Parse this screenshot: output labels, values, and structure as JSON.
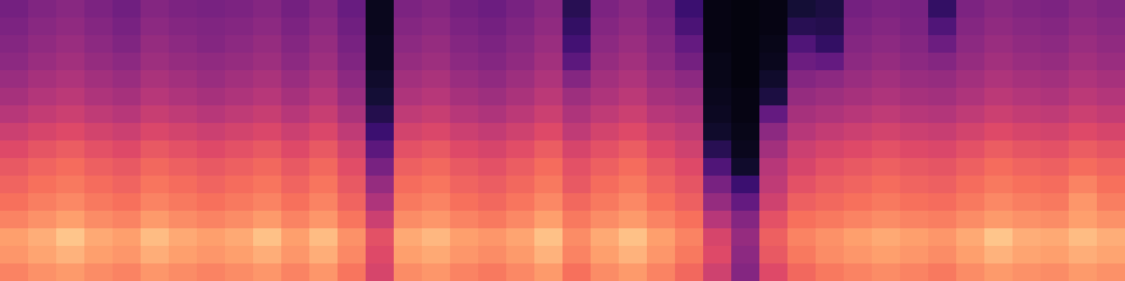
{
  "chart_data": {
    "type": "heatmap",
    "tick_labels": false,
    "grid": false,
    "zlim": [
      0,
      100
    ],
    "cells": [
      [
        34,
        37,
        39,
        36,
        33,
        38,
        36,
        35,
        36,
        38,
        34,
        38,
        31,
        5,
        36,
        38,
        34,
        32,
        35,
        39,
        15,
        36,
        39,
        34,
        20,
        3,
        2,
        3,
        10,
        12,
        34,
        36,
        35,
        18,
        36,
        39,
        37,
        36,
        39,
        37
      ],
      [
        36,
        39,
        41,
        38,
        35,
        40,
        38,
        37,
        38,
        40,
        36,
        40,
        33,
        5,
        38,
        40,
        36,
        34,
        37,
        41,
        18,
        38,
        41,
        36,
        24,
        3,
        2,
        3,
        15,
        14,
        36,
        38,
        36,
        25,
        38,
        41,
        39,
        38,
        41,
        39
      ],
      [
        38,
        41,
        43,
        40,
        37,
        42,
        40,
        38,
        40,
        42,
        38,
        42,
        35,
        6,
        40,
        42,
        38,
        36,
        39,
        43,
        22,
        40,
        43,
        38,
        30,
        3,
        2,
        4,
        25,
        18,
        38,
        40,
        38,
        32,
        40,
        43,
        41,
        40,
        43,
        41
      ],
      [
        40,
        43,
        45,
        42,
        40,
        44,
        42,
        41,
        42,
        44,
        40,
        44,
        37,
        6,
        42,
        44,
        40,
        38,
        41,
        45,
        28,
        42,
        45,
        40,
        34,
        4,
        2,
        5,
        32,
        30,
        40,
        42,
        40,
        38,
        42,
        45,
        43,
        42,
        45,
        43
      ],
      [
        43,
        46,
        48,
        45,
        43,
        47,
        45,
        43,
        45,
        47,
        43,
        47,
        40,
        8,
        45,
        47,
        43,
        41,
        44,
        48,
        38,
        45,
        48,
        43,
        40,
        4,
        2,
        8,
        38,
        40,
        43,
        45,
        43,
        42,
        45,
        48,
        46,
        45,
        48,
        46
      ],
      [
        46,
        49,
        51,
        48,
        46,
        50,
        48,
        46,
        48,
        50,
        46,
        50,
        43,
        10,
        48,
        50,
        46,
        44,
        47,
        51,
        44,
        48,
        51,
        46,
        44,
        5,
        3,
        12,
        42,
        44,
        46,
        48,
        46,
        45,
        48,
        51,
        49,
        48,
        51,
        49
      ],
      [
        50,
        53,
        55,
        52,
        50,
        54,
        52,
        50,
        52,
        54,
        50,
        54,
        47,
        14,
        52,
        54,
        50,
        48,
        51,
        55,
        48,
        52,
        55,
        50,
        48,
        6,
        3,
        30,
        46,
        48,
        50,
        52,
        50,
        49,
        52,
        55,
        53,
        52,
        55,
        53
      ],
      [
        55,
        58,
        60,
        57,
        55,
        59,
        57,
        55,
        57,
        59,
        55,
        59,
        52,
        20,
        57,
        59,
        55,
        53,
        56,
        60,
        52,
        57,
        60,
        55,
        52,
        8,
        4,
        40,
        50,
        53,
        55,
        57,
        55,
        54,
        57,
        60,
        58,
        57,
        60,
        58
      ],
      [
        60,
        63,
        65,
        62,
        60,
        64,
        62,
        60,
        62,
        64,
        60,
        64,
        57,
        28,
        62,
        64,
        60,
        58,
        61,
        65,
        58,
        62,
        65,
        60,
        56,
        15,
        5,
        45,
        55,
        58,
        60,
        62,
        60,
        59,
        62,
        65,
        63,
        62,
        65,
        63
      ],
      [
        64,
        67,
        69,
        66,
        64,
        68,
        66,
        64,
        66,
        68,
        64,
        68,
        61,
        35,
        66,
        68,
        64,
        62,
        65,
        69,
        62,
        66,
        69,
        64,
        60,
        25,
        8,
        50,
        58,
        62,
        64,
        66,
        64,
        63,
        66,
        69,
        67,
        66,
        69,
        67
      ],
      [
        67,
        70,
        72,
        69,
        67,
        71,
        69,
        67,
        69,
        71,
        67,
        71,
        64,
        42,
        69,
        71,
        67,
        65,
        68,
        72,
        64,
        69,
        72,
        67,
        63,
        35,
        20,
        52,
        62,
        65,
        67,
        69,
        67,
        66,
        69,
        72,
        70,
        69,
        74,
        70
      ],
      [
        70,
        73,
        75,
        72,
        70,
        74,
        72,
        70,
        72,
        74,
        70,
        74,
        67,
        48,
        72,
        74,
        70,
        68,
        71,
        75,
        68,
        72,
        75,
        70,
        66,
        42,
        30,
        56,
        66,
        68,
        70,
        72,
        70,
        69,
        72,
        75,
        73,
        72,
        78,
        73
      ],
      [
        74,
        77,
        80,
        76,
        74,
        79,
        76,
        74,
        76,
        79,
        74,
        78,
        71,
        55,
        76,
        78,
        74,
        72,
        75,
        80,
        72,
        76,
        79,
        74,
        70,
        50,
        38,
        62,
        70,
        72,
        74,
        76,
        74,
        73,
        76,
        79,
        77,
        76,
        80,
        77
      ],
      [
        80,
        83,
        88,
        82,
        80,
        86,
        82,
        80,
        82,
        87,
        80,
        86,
        77,
        62,
        82,
        85,
        80,
        78,
        81,
        87,
        76,
        82,
        87,
        80,
        74,
        58,
        42,
        66,
        74,
        77,
        80,
        82,
        80,
        78,
        82,
        88,
        83,
        82,
        86,
        83
      ],
      [
        78,
        81,
        84,
        80,
        78,
        83,
        80,
        78,
        80,
        83,
        78,
        83,
        75,
        60,
        80,
        82,
        78,
        76,
        79,
        84,
        74,
        80,
        84,
        78,
        72,
        60,
        40,
        64,
        72,
        76,
        78,
        80,
        78,
        76,
        80,
        84,
        81,
        80,
        83,
        81
      ],
      [
        74,
        77,
        79,
        76,
        74,
        78,
        76,
        74,
        76,
        78,
        74,
        78,
        71,
        58,
        76,
        78,
        74,
        72,
        75,
        79,
        70,
        76,
        79,
        74,
        68,
        56,
        38,
        60,
        68,
        72,
        74,
        76,
        74,
        72,
        76,
        79,
        77,
        76,
        79,
        77
      ]
    ]
  }
}
